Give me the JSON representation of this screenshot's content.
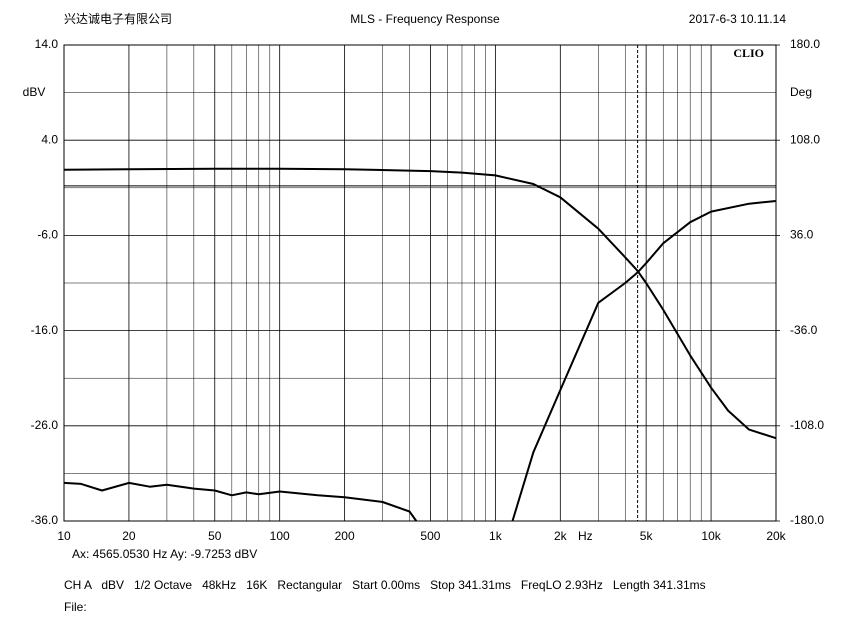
{
  "chart_data": {
    "type": "line",
    "header_left": "兴达诚电子有限公司",
    "title": "MLS - Frequency Response",
    "header_right": "2017-6-3 10.11.14",
    "brand": "CLIO",
    "ylabel": "dBV",
    "y2label": "Deg",
    "xunit": "Hz",
    "xscale": "log",
    "xlim": [
      10,
      20000
    ],
    "ylim": [
      -36,
      14
    ],
    "y2lim": [
      -180,
      180
    ],
    "xticks": [
      10,
      20,
      50,
      100,
      200,
      500,
      {
        "value": 1000,
        "label": "1k"
      },
      {
        "value": 2000,
        "label": "2k"
      },
      {
        "value": 5000,
        "label": "5k"
      },
      {
        "value": 10000,
        "label": "10k"
      },
      {
        "value": 20000,
        "label": "20k"
      }
    ],
    "xminor": [
      30,
      40,
      60,
      70,
      80,
      90,
      300,
      400,
      600,
      700,
      800,
      900,
      3000,
      4000,
      6000,
      7000,
      8000,
      9000
    ],
    "yticks": [
      {
        "value": 14,
        "label": "14.0"
      },
      {
        "value": 4,
        "label": "4.0"
      },
      {
        "value": -6,
        "label": "-6.0"
      },
      {
        "value": -16,
        "label": "-16.0"
      },
      {
        "value": -26,
        "label": "-26.0"
      },
      {
        "value": -36,
        "label": "-36.0"
      }
    ],
    "yminor": [
      9,
      -1,
      -11,
      -21,
      -31
    ],
    "y2ticks": [
      {
        "value": 180,
        "label": "180.0"
      },
      {
        "value": 108,
        "label": "108.0"
      },
      {
        "value": 36,
        "label": "36.0"
      },
      {
        "value": -36,
        "label": "-36.0"
      },
      {
        "value": -108,
        "label": "-108.0"
      },
      {
        "value": -180,
        "label": "-180.0"
      }
    ],
    "grid": true,
    "reference_level": -0.8,
    "series": [
      {
        "axis": "y",
        "color": "#000000",
        "x": [
          10,
          20,
          50,
          100,
          200,
          500,
          700,
          1000,
          1500,
          2000,
          3000,
          4000,
          4565,
          5000,
          6000,
          8000,
          10000,
          12000,
          15000,
          20000
        ],
        "values": [
          0.9,
          0.95,
          1.0,
          1.0,
          0.95,
          0.75,
          0.6,
          0.3,
          -0.6,
          -2.0,
          -5.3,
          -8.3,
          -9.73,
          -11.0,
          -13.8,
          -18.6,
          -22.0,
          -24.4,
          -26.4,
          -27.3
        ]
      },
      {
        "axis": "y2",
        "color": "#000000",
        "x": [
          1200,
          1500,
          2000,
          3000,
          4000,
          4565,
          5000,
          6000,
          8000,
          10000,
          15000,
          20000
        ],
        "values": [
          -180,
          -128,
          -81,
          -15,
          0,
          8,
          15,
          30,
          46,
          54,
          60,
          62
        ]
      },
      {
        "axis": "y",
        "color": "#000000",
        "x": [
          10,
          12,
          15,
          20,
          25,
          30,
          40,
          50,
          60,
          70,
          80,
          100,
          150,
          200,
          300,
          400,
          430
        ],
        "values": [
          -32.0,
          -32.1,
          -32.8,
          -32.0,
          -32.4,
          -32.2,
          -32.6,
          -32.8,
          -33.3,
          -33.0,
          -33.2,
          -32.9,
          -33.3,
          -33.5,
          -34.0,
          -35.0,
          -36.0
        ]
      }
    ],
    "cursor": {
      "x": 4565.053,
      "label": "Ax: 4565.0530 Hz  Ay: -9.7253 dBV"
    },
    "settings": "CH A   dBV   1/2 Octave   48kHz   16K   Rectangular   Start 0.00ms   Stop 341.31ms   FreqLO 2.93Hz   Length 341.31ms",
    "file": "File:"
  }
}
